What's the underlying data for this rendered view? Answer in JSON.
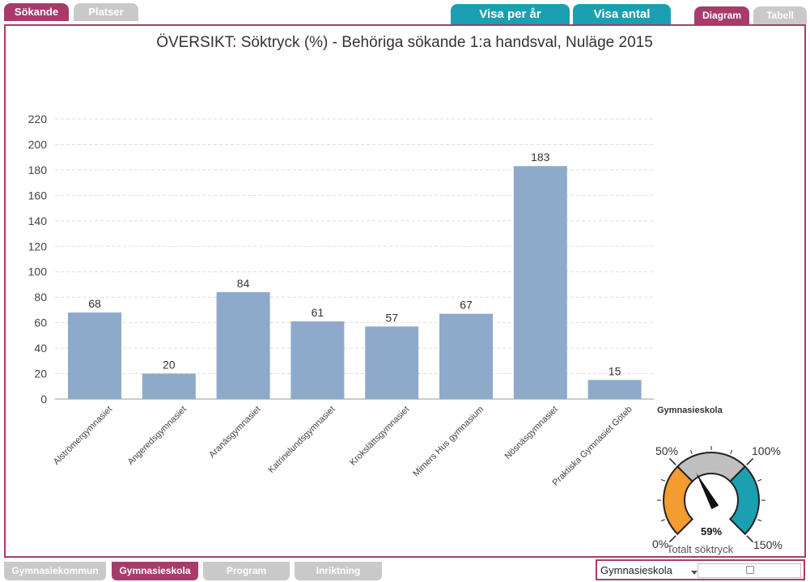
{
  "top_tabs": {
    "sokande": "Sökande",
    "platser": "Platser"
  },
  "view_buttons": {
    "per_year": "Visa per år",
    "count": "Visa antal"
  },
  "display_tabs": {
    "diagram": "Diagram",
    "tabell": "Tabell"
  },
  "chart_data": {
    "type": "bar",
    "title": "ÖVERSIKT: Söktryck (%) - Behöriga sökande 1:a handsval, Nuläge 2015",
    "xlabel": "Gymnasieskola",
    "ylabel": "",
    "ylim": [
      0,
      220
    ],
    "yticks": [
      "0",
      "20",
      "40",
      "60",
      "80",
      "100",
      "120",
      "140",
      "160",
      "180",
      "200",
      "220"
    ],
    "grid": true,
    "bar_color": "#8eaacb",
    "categories": [
      "Alströmergymnasiet",
      "Angeredsgymnasiet",
      "Aranäsgymnasiet",
      "Katrinelundsgymnasiet",
      "Krokslättsgymnasiet",
      "Mimers Hus gymnasium",
      "Nösnäsgymnasiet",
      "Praktiska Gymnasiet Göteb"
    ],
    "values": [
      68,
      20,
      84,
      61,
      57,
      67,
      183,
      15
    ]
  },
  "gauge": {
    "value": 59,
    "value_label": "59%",
    "caption": "Totalt söktryck",
    "labels": {
      "p0": "0%",
      "p50": "50%",
      "p100": "100%",
      "p150": "150%"
    },
    "colors": {
      "low": "#f39c32",
      "mid": "#c0c0c0",
      "high": "#1aa0b1"
    }
  },
  "bottom_tabs": {
    "kommun": "Gymnasiekommun",
    "skola": "Gymnasieskola",
    "program": "Program",
    "inriktning": "Inriktning"
  },
  "selector": {
    "value": "Gymnasieskola"
  },
  "colors": {
    "accent": "#a83b6b",
    "teal": "#1aa0b1",
    "inactive": "#c9c9c9"
  }
}
